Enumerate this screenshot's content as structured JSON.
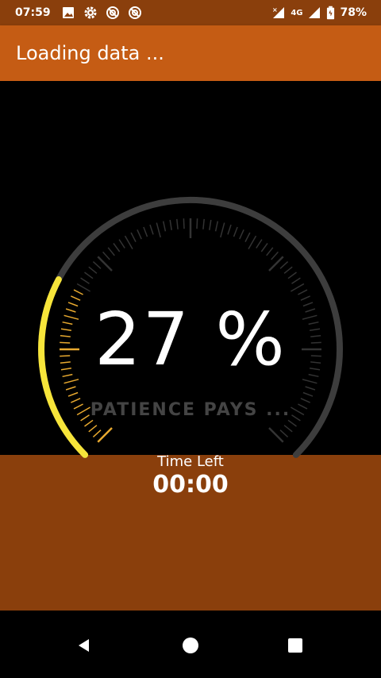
{
  "status_bar": {
    "time": "07:59",
    "network": "4G",
    "battery": "78%",
    "left_icons": [
      "image-icon",
      "gear-icon",
      "vpn-icon",
      "vpn-icon"
    ],
    "right_icons": [
      "signal-x-icon",
      "signal-icon",
      "battery-icon"
    ]
  },
  "app_bar": {
    "title": "Loading data ..."
  },
  "gauge": {
    "percent_text": "27 %",
    "progress_fraction": 0.27,
    "tagline": "PATIENCE PAYS ...",
    "colors": {
      "track": "#3d3d3d",
      "progress": "#f7e53a",
      "progress_ticks": "#e8a92f",
      "ticks": "#333333"
    }
  },
  "timer": {
    "label": "Time Left",
    "value": "00:00"
  },
  "colors": {
    "status_bar": "#8a3f0c",
    "app_bar": "#c55c14",
    "bottom_panel": "#8a3f0c"
  },
  "nav_bar": {
    "buttons": [
      "back-icon",
      "home-icon",
      "recents-icon"
    ]
  }
}
